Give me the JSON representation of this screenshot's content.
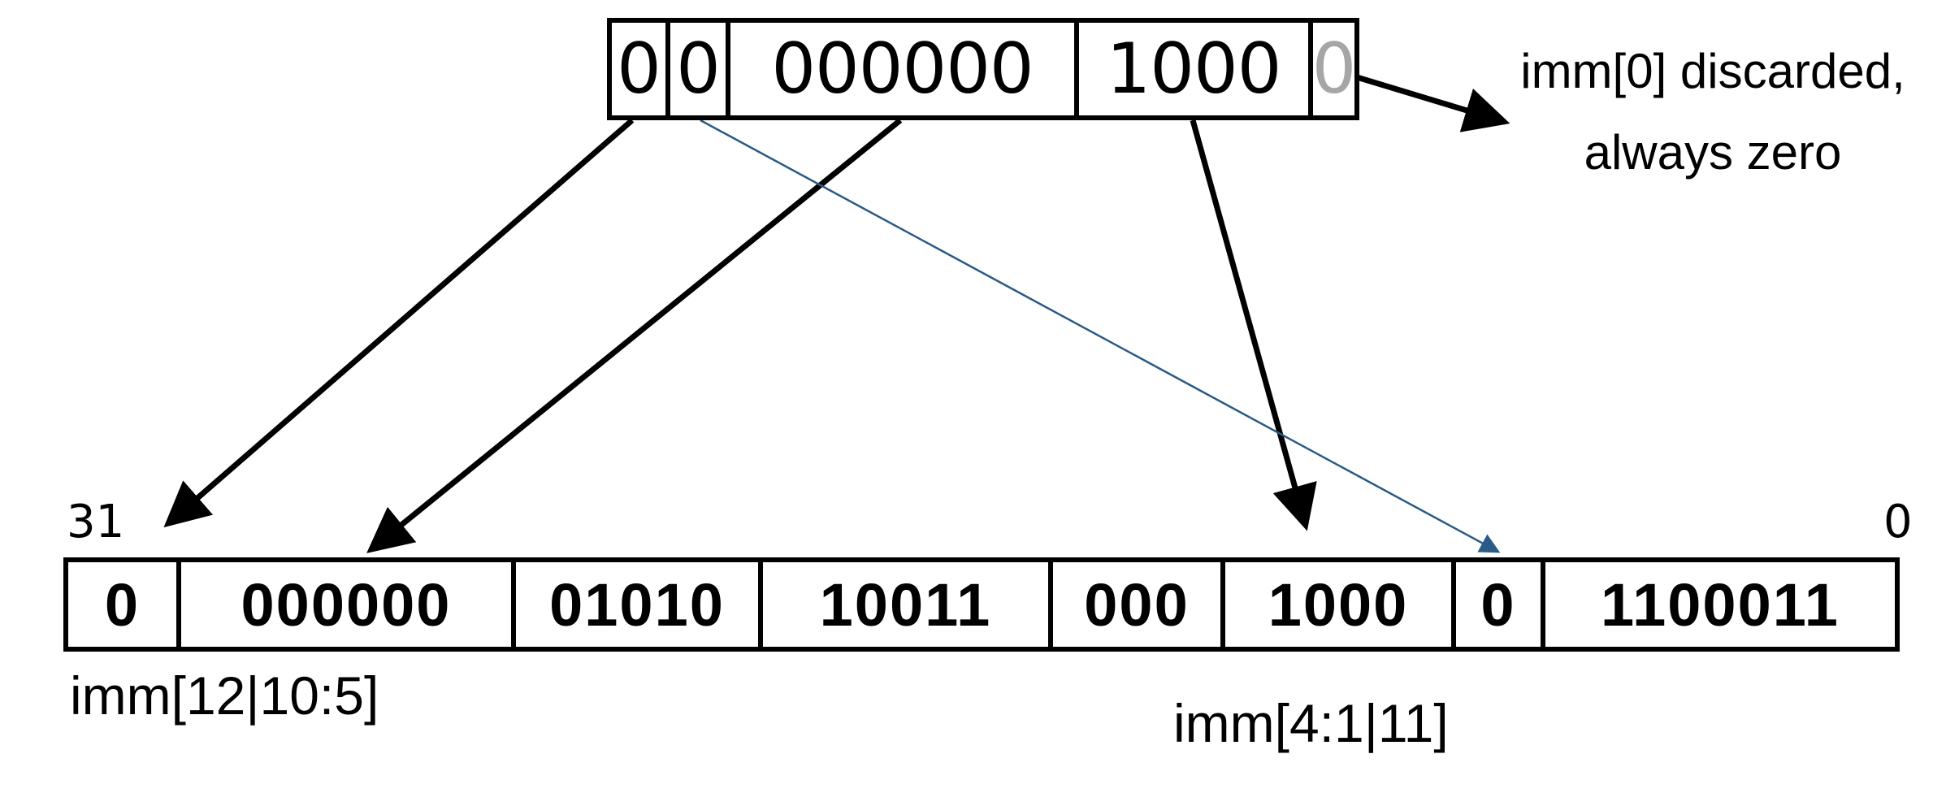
{
  "immediate": {
    "bits": [
      {
        "text": "0"
      },
      {
        "text": "0"
      },
      {
        "text": "000000"
      },
      {
        "text": "1000"
      },
      {
        "text": "0"
      }
    ],
    "note_line1": "imm[0] discarded,",
    "note_line2": "always zero"
  },
  "instruction": {
    "fields": [
      {
        "text": "0"
      },
      {
        "text": "000000"
      },
      {
        "text": "01010"
      },
      {
        "text": "10011"
      },
      {
        "text": "000"
      },
      {
        "text": "1000"
      },
      {
        "text": "0"
      },
      {
        "text": "1100011"
      }
    ],
    "bit_high": "31",
    "bit_low": "0",
    "label_left": "imm[12|10:5]",
    "label_right": "imm[4:1|11]"
  },
  "colors": {
    "stroke": "#000000",
    "thin_arrow": "#2a5a86",
    "discarded_bit": "#a6a6a6"
  }
}
